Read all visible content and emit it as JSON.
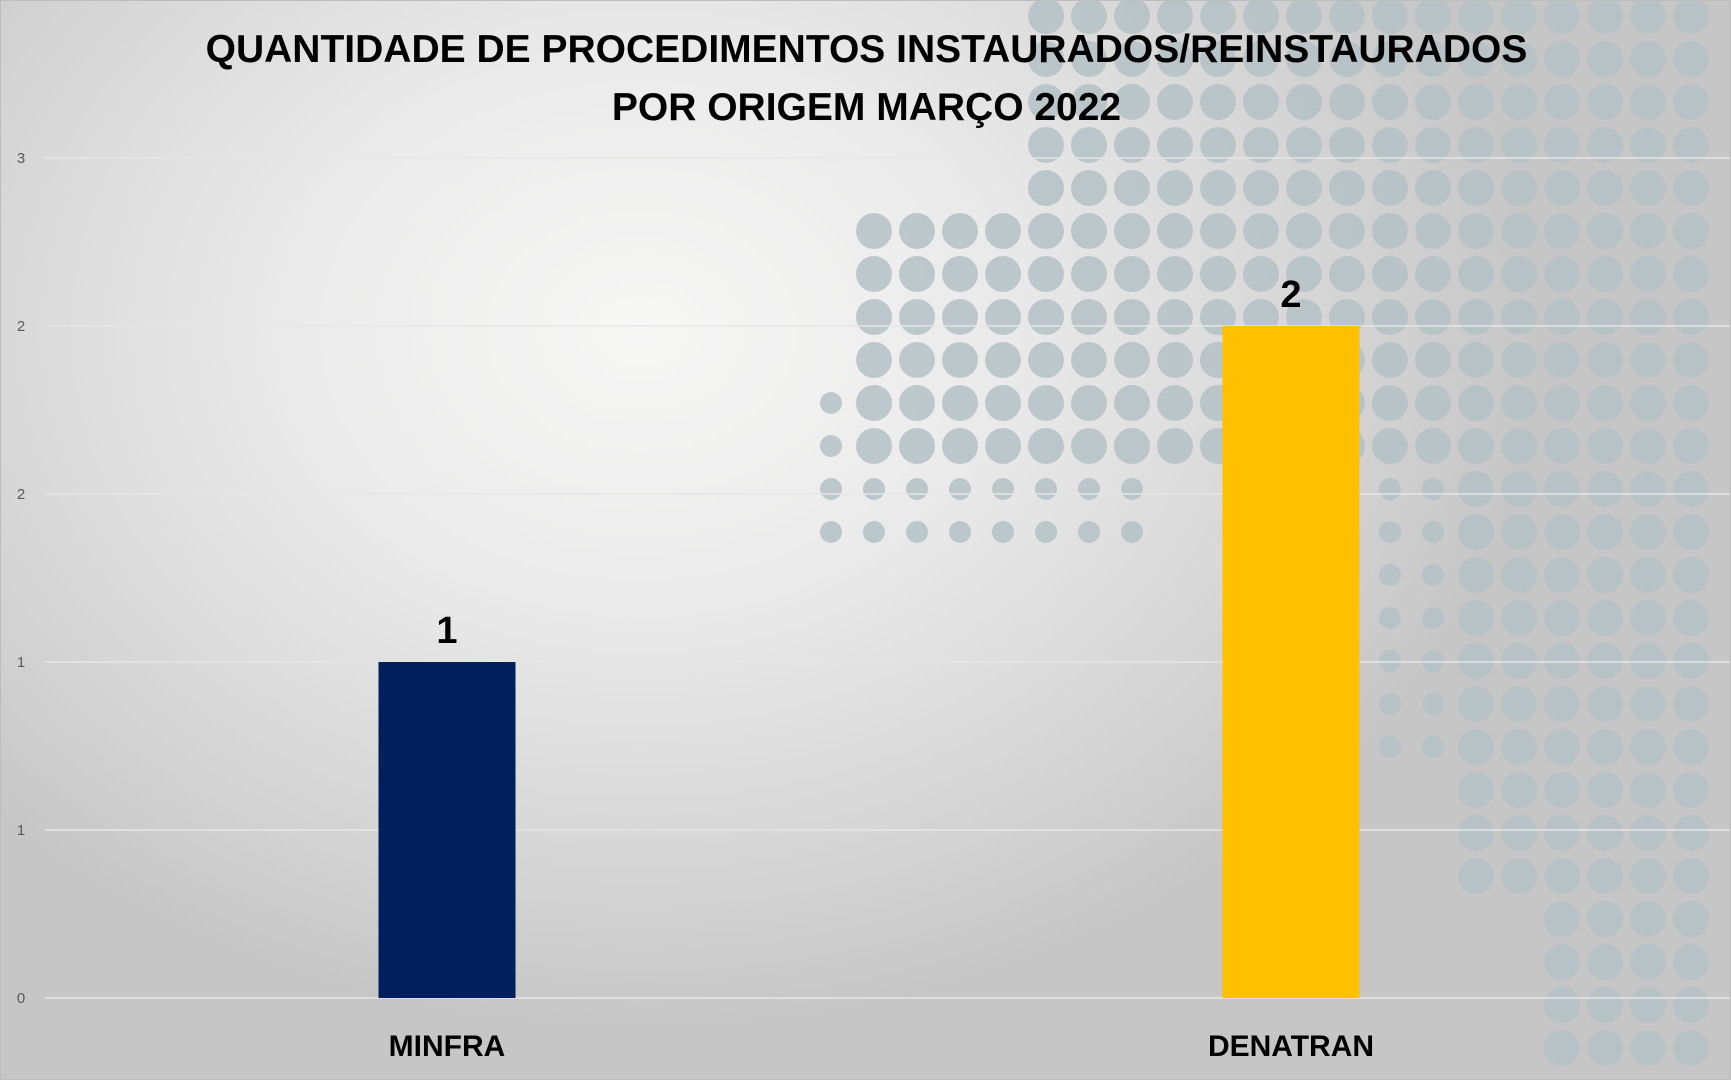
{
  "chart_data": {
    "type": "bar",
    "title": "QUANTIDADE DE PROCEDIMENTOS INSTAURADOS/REINSTAURADOS POR ORIGEM MARÇO 2022",
    "title_lines": [
      "QUANTIDADE DE PROCEDIMENTOS INSTAURADOS/REINSTAURADOS",
      "POR ORIGEM MARÇO 2022"
    ],
    "categories": [
      "MINFRA",
      "DENATRAN"
    ],
    "values": [
      1,
      2
    ],
    "data_labels": [
      "1",
      "2"
    ],
    "colors": [
      "#001f5c",
      "#ffc000"
    ],
    "xlabel": "",
    "ylabel": "",
    "ylim": [
      0,
      2.5
    ],
    "yticks": [
      0,
      0.5,
      1,
      1.5,
      2,
      2.5
    ],
    "ytick_labels": [
      "0",
      "1",
      "1",
      "2",
      "2",
      "3"
    ],
    "grid": true,
    "legend": "none"
  }
}
